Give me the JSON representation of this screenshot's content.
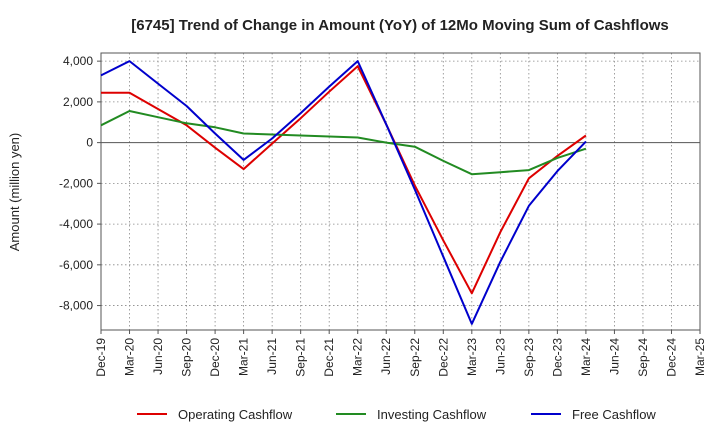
{
  "chart_data": {
    "type": "line",
    "title": "[6745]  Trend of Change in Amount (YoY) of 12Mo Moving Sum of Cashflows",
    "xlabel": "",
    "ylabel": "Amount (million yen)",
    "ylim": [
      -9200,
      4400
    ],
    "yticks": [
      4000,
      2000,
      0,
      -2000,
      -4000,
      -6000,
      -8000
    ],
    "ytick_labels": [
      "4,000",
      "2,000",
      "0",
      "-2,000",
      "-4,000",
      "-6,000",
      "-8,000"
    ],
    "categories": [
      "Dec-19",
      "Mar-20",
      "Jun-20",
      "Sep-20",
      "Dec-20",
      "Mar-21",
      "Jun-21",
      "Sep-21",
      "Dec-21",
      "Mar-22",
      "Jun-22",
      "Sep-22",
      "Dec-22",
      "Mar-23",
      "Jun-23",
      "Sep-23",
      "Dec-23",
      "Mar-24",
      "Jun-24",
      "Sep-24",
      "Dec-24",
      "Mar-25"
    ],
    "grid": true,
    "legend_position": "bottom",
    "series": [
      {
        "name": "Operating Cashflow",
        "color": "#dd0000",
        "values": [
          2450,
          2450,
          1650,
          850,
          -250,
          -1300,
          -50,
          1200,
          2500,
          3750,
          900,
          -2100,
          -4800,
          -7400,
          -4400,
          -1750,
          -650,
          350,
          null,
          null,
          null,
          null
        ]
      },
      {
        "name": "Investing Cashflow",
        "color": "#228b22",
        "values": [
          850,
          1550,
          1250,
          950,
          750,
          450,
          400,
          350,
          300,
          250,
          0,
          -200,
          -900,
          -1550,
          -1450,
          -1350,
          -750,
          -300,
          null,
          null,
          null,
          null
        ]
      },
      {
        "name": "Free Cashflow",
        "color": "#0000cc",
        "values": [
          3300,
          4000,
          2900,
          1800,
          450,
          -850,
          200,
          1450,
          2750,
          4000,
          900,
          -2300,
          -5600,
          -8900,
          -5850,
          -3100,
          -1400,
          50,
          null,
          null,
          null,
          null
        ]
      }
    ]
  }
}
